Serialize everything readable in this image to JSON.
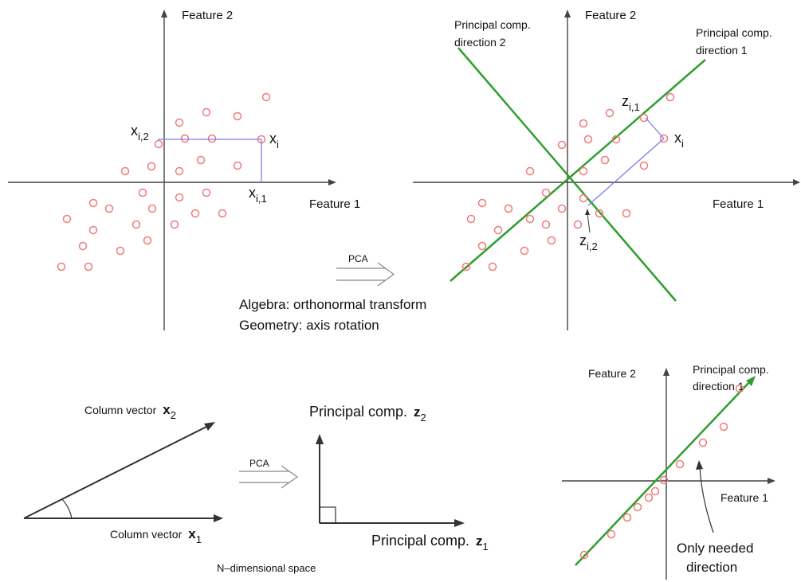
{
  "colors": {
    "points": "#f27a7a",
    "projection": "#7b7bf2",
    "pc_axis": "#2e9e2e",
    "axis": "#444444"
  },
  "panel_top_left": {
    "xlabel": "Feature 1",
    "ylabel": "Feature 2",
    "xi": "x",
    "xi_sub": "i",
    "xi2": "x",
    "xi2_sub": "i,2",
    "xi1": "x",
    "xi1_sub": "i,1"
  },
  "panel_top_right": {
    "xlabel": "Feature 1",
    "ylabel": "Feature 2",
    "pc2_line1": "Principal comp.",
    "pc2_line2": "direction 2",
    "pc1_line1": "Principal comp.",
    "pc1_line2": "direction 1",
    "xi": "x",
    "xi_sub": "i",
    "zi1": "z",
    "zi1_sub": "i,1",
    "zi2": "z",
    "zi2_sub": "i,2"
  },
  "transform": {
    "arrow_label": "PCA",
    "algebra": "Algebra: orthonormal transform",
    "geometry": "Geometry: axis rotation"
  },
  "panel_bottom_left": {
    "x2_label": "Column vector",
    "x2_var": "x",
    "x2_sub": "2",
    "x1_label": "Column vector",
    "x1_var": "x",
    "x1_sub": "1",
    "space_label": "N–dimensional space"
  },
  "panel_bottom_mid": {
    "arrow_label": "PCA",
    "z2_label": "Principal comp.",
    "z2_var": "z",
    "z2_sub": "2",
    "z1_label": "Principal comp.",
    "z1_var": "z",
    "z1_sub": "1"
  },
  "panel_bottom_right": {
    "ylabel": "Feature 2",
    "xlabel": "Feature 1",
    "pc1_line1": "Principal comp.",
    "pc1_line2": "direction 1",
    "note_line1": "Only needed",
    "note_line2": "direction"
  }
}
